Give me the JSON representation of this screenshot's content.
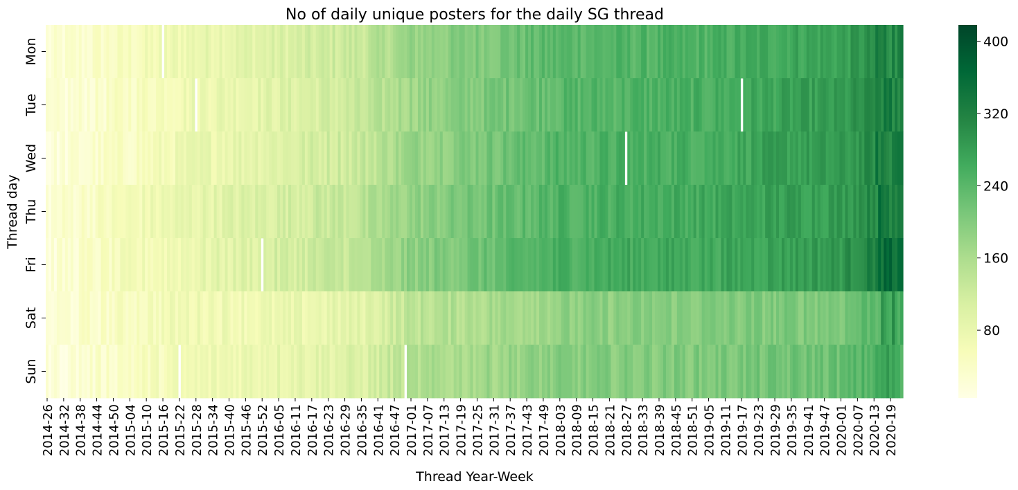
{
  "chart_data": {
    "type": "heatmap",
    "title": "No of daily unique posters for the daily SG thread",
    "xlabel": "Thread Year-Week",
    "ylabel": "Thread day",
    "y_categories": [
      "Mon",
      "Tue",
      "Wed",
      "Thu",
      "Fri",
      "Sat",
      "Sun"
    ],
    "x_tick_labels": [
      "2014-26",
      "2014-32",
      "2014-38",
      "2014-44",
      "2014-50",
      "2015-04",
      "2015-10",
      "2015-16",
      "2015-22",
      "2015-28",
      "2015-34",
      "2015-40",
      "2015-46",
      "2015-52",
      "2016-05",
      "2016-11",
      "2016-17",
      "2016-23",
      "2016-29",
      "2016-35",
      "2016-41",
      "2016-47",
      "2017-01",
      "2017-07",
      "2017-13",
      "2017-19",
      "2017-25",
      "2017-31",
      "2017-37",
      "2017-43",
      "2017-49",
      "2018-03",
      "2018-09",
      "2018-15",
      "2018-21",
      "2018-27",
      "2018-33",
      "2018-39",
      "2018-45",
      "2018-51",
      "2019-05",
      "2019-11",
      "2019-17",
      "2019-23",
      "2019-29",
      "2019-35",
      "2019-41",
      "2019-47",
      "2020-01",
      "2020-07",
      "2020-13",
      "2020-19"
    ],
    "weeks_between_ticks": 6,
    "colorbar": {
      "colormap": "YlGn",
      "vmin": 5,
      "vmax": 418,
      "ticks": [
        80,
        160,
        240,
        320,
        400
      ]
    },
    "row_trends": {
      "note": "approximate smoothed values (posters) at selected x-tick positions",
      "x_ticks": [
        "2014-26",
        "2015-04",
        "2015-28",
        "2016-05",
        "2016-35",
        "2017-01",
        "2017-31",
        "2018-03",
        "2018-33",
        "2019-05",
        "2019-35",
        "2020-01",
        "2020-19"
      ],
      "series": [
        {
          "name": "Mon",
          "values": [
            20,
            50,
            80,
            100,
            130,
            180,
            210,
            240,
            245,
            250,
            270,
            275,
            310
          ]
        },
        {
          "name": "Tue",
          "values": [
            15,
            45,
            75,
            95,
            125,
            175,
            210,
            240,
            250,
            255,
            275,
            280,
            315
          ]
        },
        {
          "name": "Wed",
          "values": [
            15,
            45,
            75,
            100,
            130,
            180,
            215,
            245,
            255,
            260,
            280,
            280,
            320
          ]
        },
        {
          "name": "Thu",
          "values": [
            25,
            60,
            85,
            110,
            140,
            185,
            220,
            250,
            260,
            265,
            280,
            285,
            330
          ]
        },
        {
          "name": "Fri",
          "values": [
            20,
            55,
            80,
            110,
            140,
            190,
            225,
            255,
            265,
            265,
            280,
            290,
            340
          ]
        },
        {
          "name": "Sat",
          "values": [
            20,
            50,
            70,
            70,
            90,
            140,
            165,
            185,
            195,
            200,
            205,
            210,
            260
          ]
        },
        {
          "name": "Sun",
          "values": [
            15,
            45,
            65,
            85,
            100,
            150,
            175,
            195,
            200,
            205,
            215,
            225,
            260
          ]
        }
      ]
    },
    "missing_cells": [
      {
        "day": "Mon",
        "week": "2015-16"
      },
      {
        "day": "Tue",
        "week": "2015-28"
      },
      {
        "day": "Tue",
        "week": "2019-17"
      },
      {
        "day": "Wed",
        "week": "2018-27"
      },
      {
        "day": "Fri",
        "week": "2015-52"
      },
      {
        "day": "Sun",
        "week": "2015-22"
      },
      {
        "day": "Sun",
        "week": "2016-51"
      }
    ]
  }
}
